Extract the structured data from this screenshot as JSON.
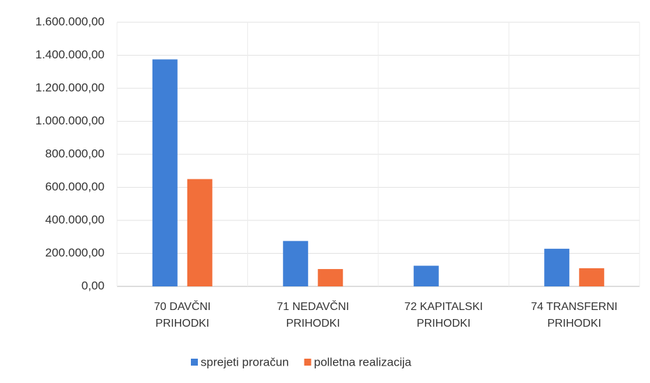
{
  "chart_data": {
    "type": "bar",
    "categories": [
      "70 DAVČNI PRIHODKI",
      "71 NEDAVČNI PRIHODKI",
      "72 KAPITALSKI PRIHODKI",
      "74 TRANSFERNI PRIHODKI"
    ],
    "series": [
      {
        "name": "sprejeti proračun",
        "color": "#3f7fd6",
        "values": [
          1375000,
          275000,
          125000,
          228000
        ]
      },
      {
        "name": "polletna realizacija",
        "color": "#f26f3a",
        "values": [
          650000,
          105000,
          0,
          110000
        ]
      }
    ],
    "ylim": [
      0,
      1600000
    ],
    "yticks": [
      {
        "value": 0,
        "label": "0,00"
      },
      {
        "value": 200000,
        "label": "200.000,00"
      },
      {
        "value": 400000,
        "label": "400.000,00"
      },
      {
        "value": 600000,
        "label": "600.000,00"
      },
      {
        "value": 800000,
        "label": "800.000,00"
      },
      {
        "value": 1000000,
        "label": "1.000.000,00"
      },
      {
        "value": 1200000,
        "label": "1.200.000,00"
      },
      {
        "value": 1400000,
        "label": "1.400.000,00"
      },
      {
        "value": 1600000,
        "label": "1.600.000,00"
      }
    ],
    "grid": true,
    "legend": "bottom"
  }
}
